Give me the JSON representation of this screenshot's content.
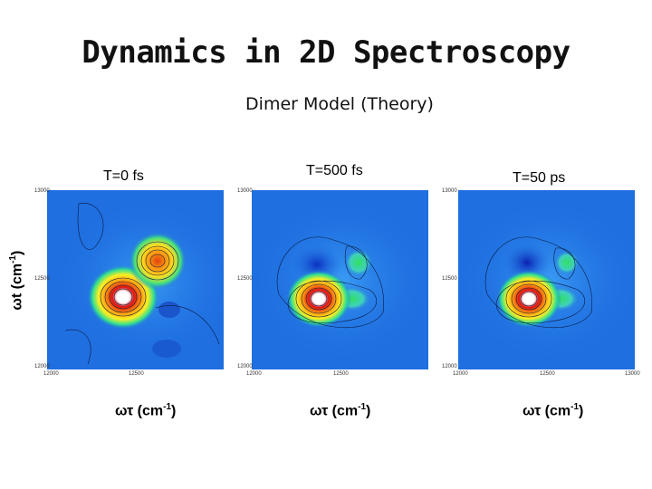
{
  "slide": {
    "title": "Dynamics in 2D Spectroscopy",
    "subtitle": "Dimer Model (Theory)"
  },
  "axes": {
    "y_label_symbol": "ωt",
    "y_label_unit": "(cm-1)",
    "x_label_symbol": "ωτ",
    "x_label_unit": "(cm-1)",
    "y_ticks": [
      "13000",
      "12500",
      "12000"
    ],
    "x_ticks": [
      "12000",
      "12500",
      "13000"
    ]
  },
  "panels": [
    {
      "label": "T=0 fs"
    },
    {
      "label": "T=500 fs"
    },
    {
      "label": "T=50 ps"
    }
  ],
  "colors": {
    "background_plot": "#1f6fe0",
    "peak_center": "#ffffff",
    "peak_ring": "#d01010"
  }
}
